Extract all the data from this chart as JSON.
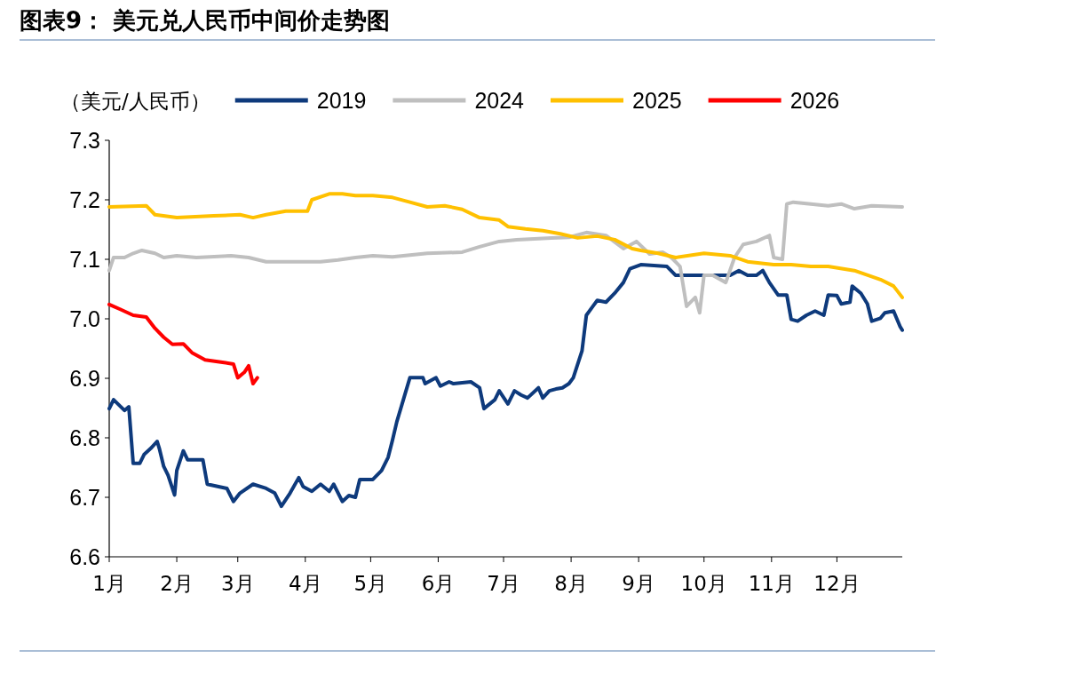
{
  "chart_data": {
    "type": "line",
    "title": "图表9：  美元兑人民币中间价走势图",
    "ylabel": "（美元/人民币）",
    "xlim": [
      "--01-01",
      "--12-31"
    ],
    "xticks": [
      {
        "value": "--01-01",
        "label": "1月"
      },
      {
        "value": "--02-01",
        "label": "2月"
      },
      {
        "value": "--03-01",
        "label": "3月"
      },
      {
        "value": "--04-01",
        "label": "4月"
      },
      {
        "value": "--05-01",
        "label": "5月"
      },
      {
        "value": "--06-01",
        "label": "6月"
      },
      {
        "value": "--07-01",
        "label": "7月"
      },
      {
        "value": "--08-01",
        "label": "8月"
      },
      {
        "value": "--09-01",
        "label": "9月"
      },
      {
        "value": "--10-01",
        "label": "10月"
      },
      {
        "value": "--11-01",
        "label": "11月"
      },
      {
        "value": "--12-01",
        "label": "12月"
      }
    ],
    "ylim": [
      6.6,
      7.3
    ],
    "yticks": [
      {
        "value": 6.6,
        "label": "6.6"
      },
      {
        "value": 6.7,
        "label": "6.7"
      },
      {
        "value": 6.8,
        "label": "6.8"
      },
      {
        "value": 6.9,
        "label": "6.9"
      },
      {
        "value": 7.0,
        "label": "7.0"
      },
      {
        "value": 7.1,
        "label": "7.1"
      },
      {
        "value": 7.2,
        "label": "7.2"
      },
      {
        "value": 7.3,
        "label": "7.3"
      }
    ],
    "grid": false,
    "legend": "top",
    "marker": "none",
    "line_style": "solid",
    "series": [
      {
        "name": "2019",
        "color": "#0e3a7c",
        "x": [
          "--01-01",
          "--01-03",
          "--01-08",
          "--01-10",
          "--01-12",
          "--01-15",
          "--01-17",
          "--01-20",
          "--01-23",
          "--01-24",
          "--01-26",
          "--01-28",
          "--01-31",
          "--02-01",
          "--02-04",
          "--02-06",
          "--02-10",
          "--02-13",
          "--02-15",
          "--02-24",
          "--02-27",
          "--03-02",
          "--03-08",
          "--03-14",
          "--03-18",
          "--03-21",
          "--03-25",
          "--03-29",
          "--03-31",
          "--04-04",
          "--04-08",
          "--04-12",
          "--04-14",
          "--04-18",
          "--04-21",
          "--04-24",
          "--04-26",
          "--05-02",
          "--05-06",
          "--05-09",
          "--05-11",
          "--05-13",
          "--05-16",
          "--05-19",
          "--05-25",
          "--05-26",
          "--05-31",
          "--06-02",
          "--06-06",
          "--06-08",
          "--06-16",
          "--06-20",
          "--06-22",
          "--06-27",
          "--06-29",
          "--07-03",
          "--07-06",
          "--07-09",
          "--07-12",
          "--07-17",
          "--07-19",
          "--07-22",
          "--07-25",
          "--07-28",
          "--07-31",
          "--08-02",
          "--08-06",
          "--08-08",
          "--08-11",
          "--08-13",
          "--08-17",
          "--08-21",
          "--08-25",
          "--08-28",
          "--09-02",
          "--09-14",
          "--09-18",
          "--10-01",
          "--10-13",
          "--10-17",
          "--10-21",
          "--10-25",
          "--10-28",
          "--10-31",
          "--11-04",
          "--11-08",
          "--11-10",
          "--11-13",
          "--11-17",
          "--11-21",
          "--11-25",
          "--11-27",
          "--12-01",
          "--12-03",
          "--12-07",
          "--12-08",
          "--12-12",
          "--12-15",
          "--12-17",
          "--12-21",
          "--12-23",
          "--12-27",
          "--12-30",
          "--12-31"
        ],
        "values": [
          6.849,
          6.864,
          6.846,
          6.852,
          6.757,
          6.757,
          6.772,
          6.782,
          6.794,
          6.782,
          6.752,
          6.737,
          6.704,
          6.745,
          6.778,
          6.763,
          6.763,
          6.763,
          6.722,
          6.715,
          6.693,
          6.707,
          6.722,
          6.715,
          6.707,
          6.685,
          6.707,
          6.733,
          6.718,
          6.71,
          6.722,
          6.71,
          6.722,
          6.693,
          6.703,
          6.7,
          6.73,
          6.73,
          6.745,
          6.767,
          6.796,
          6.827,
          6.864,
          6.901,
          6.901,
          6.891,
          6.901,
          6.887,
          6.894,
          6.891,
          6.894,
          6.884,
          6.849,
          6.864,
          6.879,
          6.857,
          6.879,
          6.872,
          6.867,
          6.884,
          6.867,
          6.879,
          6.882,
          6.884,
          6.891,
          6.901,
          6.946,
          7.006,
          7.021,
          7.031,
          7.028,
          7.043,
          7.061,
          7.084,
          7.091,
          7.088,
          7.073,
          7.073,
          7.073,
          7.081,
          7.073,
          7.073,
          7.081,
          7.061,
          7.04,
          7.04,
          6.999,
          6.996,
          7.006,
          7.013,
          7.006,
          7.04,
          7.039,
          7.025,
          7.028,
          7.055,
          7.043,
          7.025,
          6.996,
          7.001,
          7.01,
          7.013,
          6.987,
          6.981
        ]
      },
      {
        "name": "2024",
        "color": "#bfbfbf",
        "x": [
          "--01-01",
          "--01-03",
          "--01-08",
          "--01-12",
          "--01-16",
          "--01-22",
          "--01-26",
          "--02-01",
          "--02-10",
          "--02-26",
          "--03-06",
          "--03-14",
          "--03-27",
          "--04-08",
          "--04-16",
          "--04-24",
          "--05-02",
          "--05-11",
          "--05-27",
          "--06-12",
          "--06-20",
          "--06-29",
          "--07-07",
          "--07-23",
          "--07-31",
          "--08-08",
          "--08-17",
          "--08-25",
          "--08-31",
          "--09-06",
          "--09-12",
          "--09-16",
          "--09-20",
          "--09-23",
          "--09-27",
          "--09-29",
          "--10-01",
          "--10-05",
          "--10-11",
          "--10-15",
          "--10-19",
          "--10-25",
          "--10-31",
          "--11-02",
          "--11-06",
          "--11-08",
          "--11-11",
          "--11-19",
          "--11-27",
          "--12-03",
          "--12-09",
          "--12-17",
          "--12-31"
        ],
        "values": [
          7.081,
          7.103,
          7.103,
          7.11,
          7.115,
          7.11,
          7.103,
          7.106,
          7.103,
          7.106,
          7.103,
          7.096,
          7.096,
          7.096,
          7.099,
          7.103,
          7.106,
          7.104,
          7.11,
          7.112,
          7.121,
          7.13,
          7.133,
          7.136,
          7.137,
          7.145,
          7.14,
          7.118,
          7.13,
          7.109,
          7.112,
          7.103,
          7.088,
          7.021,
          7.036,
          7.01,
          7.073,
          7.073,
          7.061,
          7.103,
          7.125,
          7.13,
          7.14,
          7.103,
          7.1,
          7.193,
          7.196,
          7.193,
          7.19,
          7.193,
          7.185,
          7.19,
          7.188
        ]
      },
      {
        "name": "2025",
        "color": "#ffc000",
        "x": [
          "--01-01",
          "--01-18",
          "--01-22",
          "--02-01",
          "--02-18",
          "--03-02",
          "--03-08",
          "--03-14",
          "--03-23",
          "--04-02",
          "--04-04",
          "--04-12",
          "--04-18",
          "--04-24",
          "--05-02",
          "--05-11",
          "--05-19",
          "--05-27",
          "--06-04",
          "--06-12",
          "--06-20",
          "--06-29",
          "--07-03",
          "--07-11",
          "--07-19",
          "--07-27",
          "--08-04",
          "--08-13",
          "--08-21",
          "--08-29",
          "--09-02",
          "--09-10",
          "--09-18",
          "--10-01",
          "--10-13",
          "--10-21",
          "--11-02",
          "--11-10",
          "--11-19",
          "--11-27",
          "--12-09",
          "--12-21",
          "--12-27",
          "--12-31"
        ],
        "values": [
          7.188,
          7.19,
          7.175,
          7.17,
          7.173,
          7.175,
          7.17,
          7.175,
          7.181,
          7.181,
          7.2,
          7.21,
          7.21,
          7.207,
          7.207,
          7.204,
          7.196,
          7.188,
          7.19,
          7.184,
          7.17,
          7.166,
          7.155,
          7.151,
          7.148,
          7.143,
          7.136,
          7.139,
          7.133,
          7.118,
          7.115,
          7.11,
          7.103,
          7.11,
          7.106,
          7.096,
          7.091,
          7.091,
          7.088,
          7.088,
          7.081,
          7.066,
          7.055,
          7.036
        ]
      },
      {
        "name": "2026",
        "color": "#ff0000",
        "x": [
          "--01-01",
          "--01-06",
          "--01-12",
          "--01-18",
          "--01-22",
          "--01-26",
          "--01-30",
          "--02-04",
          "--02-08",
          "--02-14",
          "--02-22",
          "--02-27",
          "--03-01",
          "--03-04",
          "--03-06",
          "--03-08",
          "--03-10"
        ],
        "values": [
          7.024,
          7.016,
          7.006,
          7.003,
          6.984,
          6.969,
          6.957,
          6.958,
          6.943,
          6.931,
          6.927,
          6.924,
          6.901,
          6.91,
          6.921,
          6.891,
          6.901
        ]
      }
    ]
  }
}
